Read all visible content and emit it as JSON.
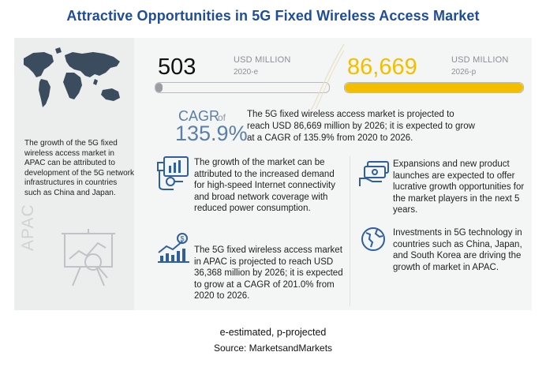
{
  "title": "Attractive Opportunities in 5G Fixed Wireless Access Market",
  "left": {
    "description": "The growth of the 5G fixed wireless access market in APAC can be attributed to development of the 5G network infrastructures in countries such as China and Japan.",
    "region_label": "APAC"
  },
  "stats": {
    "value_2020": "503",
    "unit_2020": "USD MILLION",
    "year_2020": "2020-e",
    "progress_2020": 0.02,
    "value_2026": "86,669",
    "unit_2026": "USD MILLION",
    "year_2026": "2026-p",
    "progress_2026": 1.0
  },
  "cagr": {
    "word": "CAGR",
    "of": "of",
    "value": "135.9%",
    "text": "The 5G fixed wireless access market is projected to reach USD 86,669 million by 2026; it is expected to grow at a CAGR of 135.9% from 2020 to 2026."
  },
  "blocks": {
    "growth_drivers": "The growth of the market can be attributed to the increased demand for high-speed Internet connectivity and broad network coverage with reduced power consumption.",
    "apac_projection": "The 5G fixed wireless access market in APAC is projected to reach USD 36,368 million by 2026; it is expected to grow at a CAGR of 201.0% from 2020 to 2026.",
    "expansions": "Expansions and new product launches are expected to offer lucrative growth opportunities for the market players in the next 5 years.",
    "investments": "Investments in 5G technology in countries such as China, Japan, and South Korea are driving the growth of market in APAC."
  },
  "footer": {
    "note": "e-estimated, p-projected",
    "source": "Source: MarketsandMarkets"
  },
  "colors": {
    "title": "#1f4e96",
    "accent_yellow": "#f4be00",
    "bar_grey": "#9a9ea3",
    "cagr_blue": "#5b7fa6",
    "icon_blue": "#2f5f9e"
  }
}
